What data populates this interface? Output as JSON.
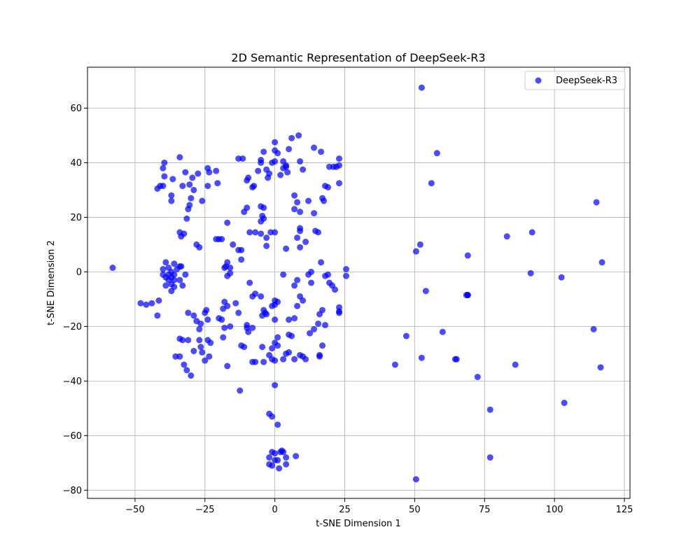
{
  "chart_data": {
    "type": "scatter",
    "title": "2D Semantic Representation of DeepSeek-R3",
    "xlabel": "t-SNE Dimension 1",
    "ylabel": "t-SNE Dimension 2",
    "xlim": [
      -67,
      127
    ],
    "ylim": [
      -83,
      75
    ],
    "xticks": [
      -50,
      -25,
      0,
      25,
      50,
      75,
      100,
      125
    ],
    "yticks": [
      -80,
      -60,
      -40,
      -20,
      0,
      20,
      40,
      60
    ],
    "xtick_labels": [
      "−50",
      "−25",
      "0",
      "25",
      "50",
      "75",
      "100",
      "125"
    ],
    "ytick_labels": [
      "−80",
      "−60",
      "−40",
      "−20",
      "0",
      "20",
      "40",
      "60"
    ],
    "grid": true,
    "legend_position": "upper-right",
    "series": [
      {
        "name": "DeepSeek-R3",
        "color": "#0000ff",
        "points": [
          [
            -58,
            1.5
          ],
          [
            -48,
            -11.5
          ],
          [
            -46,
            -12
          ],
          [
            -44,
            -11.5
          ],
          [
            -42,
            -16
          ],
          [
            -41.5,
            -10.5
          ],
          [
            -42,
            30.5
          ],
          [
            -41,
            31.5
          ],
          [
            -40,
            31.5
          ],
          [
            -39.5,
            40
          ],
          [
            -40,
            38
          ],
          [
            -39.5,
            35
          ],
          [
            -36.5,
            34
          ],
          [
            -37,
            28
          ],
          [
            -37,
            26
          ],
          [
            -34,
            42
          ],
          [
            -33,
            31.5
          ],
          [
            -32,
            36.5
          ],
          [
            -30.5,
            32
          ],
          [
            -29.5,
            34.5
          ],
          [
            -29,
            30
          ],
          [
            -27.5,
            36
          ],
          [
            -26,
            26
          ],
          [
            -31,
            23
          ],
          [
            -30.5,
            24.5
          ],
          [
            -30,
            27
          ],
          [
            -31.5,
            19.5
          ],
          [
            -34,
            14.5
          ],
          [
            -33.5,
            13
          ],
          [
            -32.5,
            14
          ],
          [
            -28,
            10
          ],
          [
            -27,
            9
          ],
          [
            -40,
            1
          ],
          [
            -39,
            3.5
          ],
          [
            -38,
            1.5
          ],
          [
            -38,
            -1
          ],
          [
            -39,
            -2
          ],
          [
            -40,
            -1
          ],
          [
            -38,
            -3
          ],
          [
            -37,
            -2
          ],
          [
            -36,
            -3
          ],
          [
            -39,
            -5
          ],
          [
            -37,
            -4.5
          ],
          [
            -36,
            -5.5
          ],
          [
            -37,
            -7
          ],
          [
            -36,
            -1
          ],
          [
            -35,
            1
          ],
          [
            -34,
            2
          ],
          [
            -33.5,
            2
          ],
          [
            -32,
            -1
          ],
          [
            -34,
            -3
          ],
          [
            -33,
            -5
          ],
          [
            -36,
            3
          ],
          [
            -37,
            0
          ],
          [
            -31,
            -15
          ],
          [
            -29,
            -16
          ],
          [
            -28,
            -18
          ],
          [
            -27,
            -21
          ],
          [
            -26.5,
            -19
          ],
          [
            -25,
            -15
          ],
          [
            -24.5,
            -14
          ],
          [
            -24,
            -17.5
          ],
          [
            -34,
            -24.5
          ],
          [
            -33,
            -25
          ],
          [
            -31,
            -25
          ],
          [
            -29,
            -29
          ],
          [
            -27,
            -25
          ],
          [
            -26.5,
            -27.5
          ],
          [
            -26,
            -29.5
          ],
          [
            -25,
            -32.5
          ],
          [
            -24,
            -25
          ],
          [
            -23,
            -26
          ],
          [
            -23.5,
            -31
          ],
          [
            -35.5,
            -31
          ],
          [
            -34,
            -31
          ],
          [
            -32.5,
            -34
          ],
          [
            -31.5,
            -36
          ],
          [
            -30,
            -38
          ],
          [
            -24,
            38
          ],
          [
            -23.5,
            36.5
          ],
          [
            -24,
            31.5
          ],
          [
            -21,
            37
          ],
          [
            -20.5,
            32.5
          ],
          [
            -20,
            12
          ],
          [
            -19,
            12
          ],
          [
            -21,
            12
          ],
          [
            -18,
            1.5
          ],
          [
            -17.5,
            2
          ],
          [
            -16,
            1.5
          ],
          [
            -17,
            3.5
          ],
          [
            -16,
            -0.5
          ],
          [
            -17,
            -1.5
          ],
          [
            -15,
            10
          ],
          [
            -13,
            8
          ],
          [
            -12,
            8
          ],
          [
            -17,
            18
          ],
          [
            -12,
            4.5
          ],
          [
            -11,
            22
          ],
          [
            -10,
            23.5
          ],
          [
            -9,
            14.5
          ],
          [
            -7,
            14.5
          ],
          [
            -5,
            14
          ],
          [
            -3,
            12.5
          ],
          [
            -13,
            41.5
          ],
          [
            -11.5,
            41.5
          ],
          [
            -10,
            33.5
          ],
          [
            -9.5,
            34.5
          ],
          [
            -8,
            31
          ],
          [
            -7.5,
            31.5
          ],
          [
            -6,
            37
          ],
          [
            -5,
            40
          ],
          [
            -5,
            41
          ],
          [
            -4,
            44
          ],
          [
            -3,
            37.5
          ],
          [
            -2.5,
            34.5
          ],
          [
            -2,
            36
          ],
          [
            -1,
            40
          ],
          [
            0,
            40.5
          ],
          [
            0,
            44.5
          ],
          [
            0,
            47.5
          ],
          [
            1,
            43.5
          ],
          [
            2,
            35.5
          ],
          [
            3,
            38
          ],
          [
            3,
            40.5
          ],
          [
            4,
            39
          ],
          [
            4,
            38.5
          ],
          [
            4.5,
            36.5
          ],
          [
            5,
            45
          ],
          [
            -5,
            24
          ],
          [
            -4,
            23.5
          ],
          [
            -4.5,
            20.5
          ],
          [
            -4,
            19.5
          ],
          [
            -5,
            18.5
          ],
          [
            -3,
            9.5
          ],
          [
            -1.5,
            14.5
          ],
          [
            0,
            14.5
          ],
          [
            -18,
            -11
          ],
          [
            -17,
            -12.5
          ],
          [
            -18.5,
            -13.5
          ],
          [
            -18,
            -20.5
          ],
          [
            -16,
            -20
          ],
          [
            -20,
            -17
          ],
          [
            -19,
            -17.5
          ],
          [
            -14,
            -11.5
          ],
          [
            -13,
            -15
          ],
          [
            -10,
            -19.5
          ],
          [
            -10,
            -20.5
          ],
          [
            -9.5,
            -22
          ],
          [
            -8,
            -20.5
          ],
          [
            -7,
            -8
          ],
          [
            -9,
            -4
          ],
          [
            -8,
            -9
          ],
          [
            -5,
            -9
          ],
          [
            -4.5,
            -16
          ],
          [
            -3.5,
            -15
          ],
          [
            -3,
            -15.5
          ],
          [
            -4,
            -14
          ],
          [
            -1,
            -12.5
          ],
          [
            0,
            -12
          ],
          [
            0,
            -17.5
          ],
          [
            0,
            -10.5
          ],
          [
            1,
            -11
          ],
          [
            -18.5,
            -24
          ],
          [
            -12,
            -27
          ],
          [
            -11,
            -27.5
          ],
          [
            -8,
            -33
          ],
          [
            -7,
            -33
          ],
          [
            -4.5,
            -27.5
          ],
          [
            -4,
            -33
          ],
          [
            -2,
            -30.5
          ],
          [
            -1,
            -28
          ],
          [
            0,
            -26
          ],
          [
            1,
            -24
          ],
          [
            1,
            -27
          ],
          [
            -1,
            -32
          ],
          [
            0,
            -32.5
          ],
          [
            -17,
            -34.5
          ],
          [
            -12.5,
            -43.5
          ],
          [
            0,
            -41.5
          ],
          [
            6,
            49
          ],
          [
            8.5,
            50
          ],
          [
            14,
            45.5
          ],
          [
            16.5,
            44
          ],
          [
            9,
            40.5
          ],
          [
            10,
            37.5
          ],
          [
            7,
            28
          ],
          [
            8,
            25.5
          ],
          [
            7,
            23
          ],
          [
            9,
            22
          ],
          [
            12,
            26
          ],
          [
            17,
            27
          ],
          [
            17.5,
            26
          ],
          [
            18,
            31.5
          ],
          [
            19,
            31
          ],
          [
            19.5,
            38.5
          ],
          [
            21,
            38.5
          ],
          [
            22,
            38.5
          ],
          [
            23,
            39
          ],
          [
            23,
            41.5
          ],
          [
            23,
            32.5
          ],
          [
            14,
            21.5
          ],
          [
            14.5,
            15
          ],
          [
            15.5,
            14.5
          ],
          [
            9,
            16
          ],
          [
            9,
            15
          ],
          [
            8,
            12.5
          ],
          [
            4,
            8.5
          ],
          [
            9,
            9
          ],
          [
            11,
            11
          ],
          [
            3,
            -1
          ],
          [
            7,
            -5
          ],
          [
            8,
            -3
          ],
          [
            12,
            -1
          ],
          [
            13,
            0
          ],
          [
            13,
            -4
          ],
          [
            16.5,
            3.5
          ],
          [
            18,
            -1.5
          ],
          [
            19,
            -1
          ],
          [
            19.5,
            -4
          ],
          [
            20.5,
            -5
          ],
          [
            21.5,
            -6.5
          ],
          [
            25.5,
            1
          ],
          [
            25.5,
            -1.5
          ],
          [
            5,
            -17.5
          ],
          [
            7,
            -17
          ],
          [
            8,
            -12.5
          ],
          [
            9,
            -9
          ],
          [
            10,
            -10.5
          ],
          [
            14,
            -21
          ],
          [
            15.5,
            -19
          ],
          [
            16,
            -15.5
          ],
          [
            17,
            -14
          ],
          [
            18,
            -19.5
          ],
          [
            12.5,
            -22.5
          ],
          [
            5,
            -23
          ],
          [
            6,
            -23.5
          ],
          [
            5,
            -29.5
          ],
          [
            4,
            -30
          ],
          [
            3,
            -32
          ],
          [
            7,
            -32
          ],
          [
            9,
            -30.5
          ],
          [
            10,
            -31
          ],
          [
            11,
            -32
          ],
          [
            16,
            -30.5
          ],
          [
            16,
            -31
          ],
          [
            17,
            -27
          ],
          [
            23,
            -14.5
          ],
          [
            23,
            -15
          ],
          [
            23,
            -13
          ],
          [
            -2,
            -52
          ],
          [
            -1,
            -53
          ],
          [
            1,
            -56
          ],
          [
            -2,
            -68
          ],
          [
            -1,
            -66
          ],
          [
            0,
            -66.5
          ],
          [
            -2,
            -70.5
          ],
          [
            -1,
            -71
          ],
          [
            0,
            -69
          ],
          [
            1,
            -69
          ],
          [
            2,
            -66
          ],
          [
            2.5,
            -65.5
          ],
          [
            3,
            -66
          ],
          [
            1.5,
            -72
          ],
          [
            4,
            -68
          ],
          [
            4,
            -70.5
          ],
          [
            7.5,
            -67.5
          ],
          [
            52.5,
            67.5
          ],
          [
            58,
            43.5
          ],
          [
            56,
            32.5
          ],
          [
            52,
            10
          ],
          [
            50.5,
            7.5
          ],
          [
            54,
            -7
          ],
          [
            60,
            -22
          ],
          [
            69,
            6
          ],
          [
            69,
            -8.5
          ],
          [
            69,
            -8.5
          ],
          [
            68.5,
            -8.5
          ],
          [
            47,
            -23.5
          ],
          [
            52.5,
            -31.5
          ],
          [
            43,
            -34
          ],
          [
            65,
            -32
          ],
          [
            72.5,
            -38.5
          ],
          [
            77,
            -50.5
          ],
          [
            77,
            -68
          ],
          [
            50.5,
            -76
          ],
          [
            83,
            13
          ],
          [
            92,
            14.5
          ],
          [
            91.5,
            -0.5
          ],
          [
            102.5,
            -2
          ],
          [
            86,
            -34
          ],
          [
            103.5,
            -48
          ],
          [
            114,
            -21
          ],
          [
            115,
            25.5
          ],
          [
            117,
            3.5
          ],
          [
            116.5,
            -35
          ],
          [
            64.5,
            -32
          ]
        ]
      }
    ]
  }
}
